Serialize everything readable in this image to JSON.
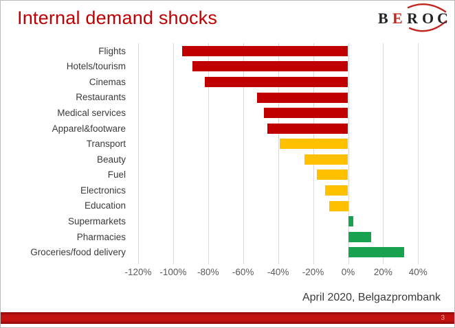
{
  "slide": {
    "title": "Internal demand shocks",
    "footer": "April 2020, Belgazprombank",
    "page_number": "3"
  },
  "logo": {
    "letters": [
      "B",
      "E",
      "R",
      "O",
      "C"
    ],
    "red_letter_index": 1,
    "letter_color": "#232323",
    "accent_color": "#c4251f"
  },
  "colors": {
    "title": "#c00000",
    "bar_red": "#c00000",
    "bar_yellow": "#ffc000",
    "bar_green": "#18a24f",
    "gridline": "#d9d9d9",
    "axis_text": "#595959",
    "label_text": "#3a3a3a",
    "footer_bar": "#c41212"
  },
  "chart_data": {
    "type": "bar",
    "orientation": "horizontal",
    "title": "Internal demand shocks",
    "xlabel": "",
    "ylabel": "",
    "grid": true,
    "legend": false,
    "xlim": [
      -120,
      45
    ],
    "categories": [
      "Flights",
      "Hotels/tourism",
      "Cinemas",
      "Restaurants",
      "Medical services",
      "Apparel&footware",
      "Transport",
      "Beauty",
      "Fuel",
      "Electronics",
      "Education",
      "Supermarkets",
      "Pharmacies",
      "Groceries/food delivery"
    ],
    "values": [
      -95,
      -89,
      -82,
      -52,
      -48,
      -46,
      -39,
      -25,
      -18,
      -13,
      -11,
      3,
      13,
      32
    ],
    "bar_colors": [
      "#c00000",
      "#c00000",
      "#c00000",
      "#c00000",
      "#c00000",
      "#c00000",
      "#ffc000",
      "#ffc000",
      "#ffc000",
      "#ffc000",
      "#ffc000",
      "#18a24f",
      "#18a24f",
      "#18a24f"
    ],
    "x_ticks": [
      "-120%",
      "-100%",
      "-80%",
      "-60%",
      "-40%",
      "-20%",
      "0%",
      "20%",
      "40%"
    ],
    "x_tick_values": [
      -120,
      -100,
      -80,
      -60,
      -40,
      -20,
      0,
      20,
      40
    ],
    "source_note": "April 2020, Belgazprombank"
  }
}
